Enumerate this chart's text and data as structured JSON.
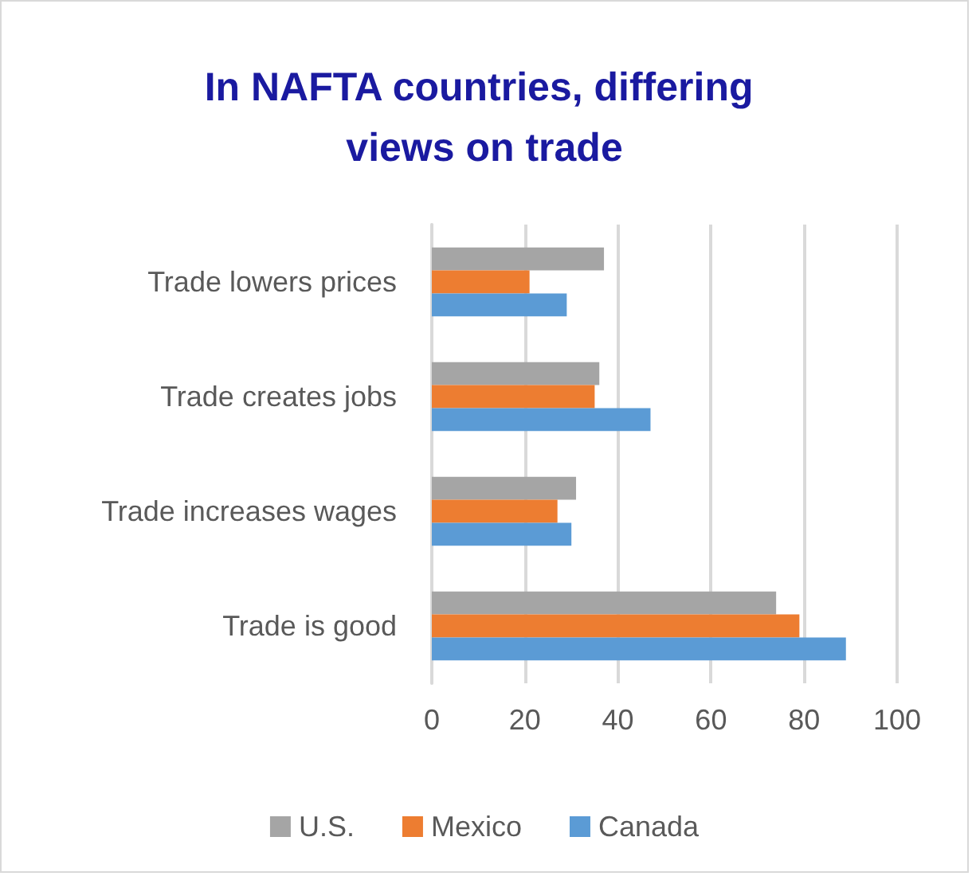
{
  "chart_data": {
    "type": "bar",
    "orientation": "horizontal",
    "title": "In NAFTA countries, differing views on trade",
    "categories": [
      "Trade lowers prices",
      "Trade creates jobs",
      "Trade increases wages",
      "Trade is good"
    ],
    "series": [
      {
        "name": "U.S.",
        "color": "#a5a5a5",
        "values": [
          37,
          36,
          31,
          74
        ]
      },
      {
        "name": "Mexico",
        "color": "#ed7d31",
        "values": [
          21,
          35,
          27,
          79
        ]
      },
      {
        "name": "Canada",
        "color": "#5b9bd5",
        "values": [
          29,
          47,
          30,
          89
        ]
      }
    ],
    "xlim": [
      0,
      100
    ],
    "xticks": [
      0,
      20,
      40,
      60,
      80,
      100
    ],
    "grid": "x",
    "legend": "bottom"
  }
}
